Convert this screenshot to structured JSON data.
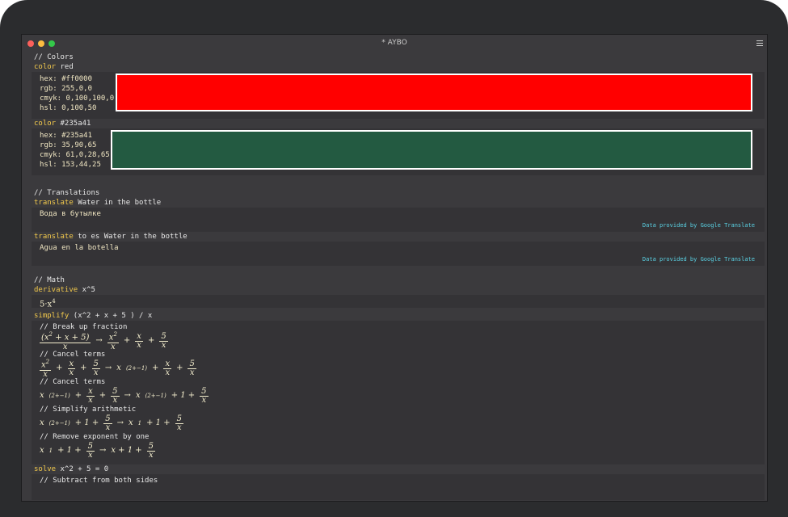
{
  "window": {
    "title": "* AYBO"
  },
  "colors": {
    "comment": "// Colors",
    "entries": [
      {
        "keyword": "color",
        "arg": "red",
        "hex": "hex: #ff0000",
        "rgb": "rgb: 255,0,0",
        "cmyk": "cmyk: 0,100,100,0",
        "hsl": "hsl: 0,100,50",
        "swatch": "#ff0000"
      },
      {
        "keyword": "color",
        "arg": "#235a41",
        "hex": "hex: #235a41",
        "rgb": "rgb: 35,90,65",
        "cmyk": "cmyk: 61,0,28,65",
        "hsl": "hsl: 153,44,25",
        "swatch": "#235a41"
      }
    ]
  },
  "translations": {
    "comment": "// Translations",
    "entries": [
      {
        "keyword": "translate",
        "arg": "Water in the bottle",
        "result": "Вода в бутылке",
        "credit": "Data provided by Google Translate"
      },
      {
        "keyword": "translate",
        "arg": "to es Water in the bottle",
        "result": "Agua en la botella",
        "credit": "Data provided by Google Translate"
      }
    ]
  },
  "math": {
    "comment": "// Math",
    "derivative": {
      "keyword": "derivative",
      "arg": "x^5",
      "result_coef": "5·x",
      "result_exp": "4"
    },
    "simplify": {
      "keyword": "simplify",
      "arg": "(x^2 + x + 5 ) / x",
      "steps": [
        "// Break up fraction",
        "// Cancel terms",
        "// Cancel terms",
        "// Simplify arithmetic",
        "// Remove exponent by one"
      ]
    },
    "solve": {
      "keyword": "solve",
      "arg": "x^2 + 5 = 0",
      "step": "// Subtract from both sides"
    }
  },
  "accent_colors": {
    "keyword": "#f2c94c",
    "comment": "#8a8f98",
    "credit": "#5ad1e3"
  }
}
